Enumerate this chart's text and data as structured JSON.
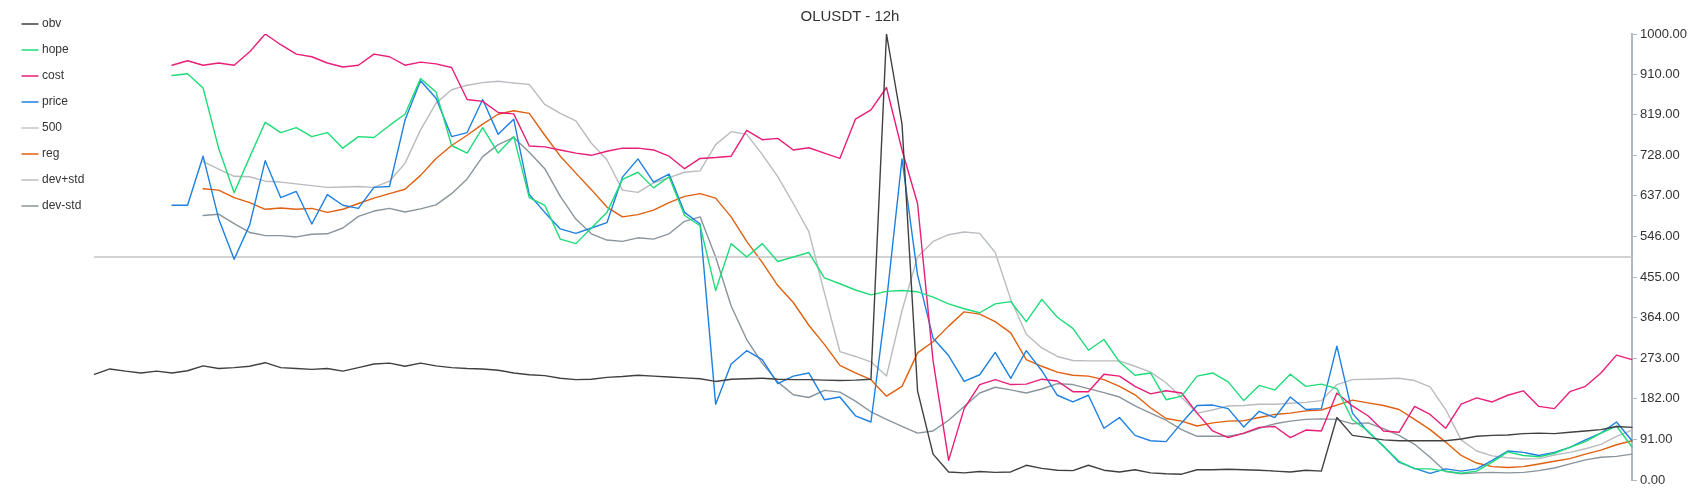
{
  "chart_data": {
    "type": "line",
    "title": "OLUSDT - 12h",
    "categories": [
      null,
      null,
      null,
      null,
      null,
      null,
      null,
      null,
      null,
      null,
      null,
      null,
      null,
      null,
      null,
      null,
      null,
      null,
      null,
      null,
      null,
      null,
      null,
      null,
      null,
      null,
      null,
      null,
      null,
      null,
      null,
      null,
      null,
      null,
      null,
      null,
      null,
      null,
      null,
      null,
      null,
      null,
      null,
      null,
      null,
      null,
      null,
      null,
      null,
      null,
      null,
      null,
      null,
      null,
      null,
      null,
      null,
      null,
      null,
      null,
      null,
      null,
      null,
      null,
      null,
      null,
      null,
      null,
      null,
      null,
      null,
      null,
      null,
      null,
      null,
      null,
      null,
      null,
      null,
      null,
      null,
      null,
      null,
      null,
      null,
      null,
      null,
      null,
      null,
      null,
      null,
      null,
      null,
      null,
      null,
      null,
      null,
      null,
      null,
      null
    ],
    "series": [
      {
        "name": "obv",
        "color": "#404040",
        "values": [
          237,
          249,
          244,
          240,
          244,
          240,
          245,
          256,
          250,
          252,
          255,
          263,
          252,
          250,
          248,
          250,
          244,
          252,
          260,
          262,
          255,
          262,
          256,
          252,
          250,
          249,
          246,
          240,
          236,
          234,
          228,
          225,
          226,
          230,
          232,
          235,
          233,
          231,
          229,
          227,
          221,
          226,
          227,
          228,
          226,
          225,
          225,
          224,
          223,
          224,
          226,
          1000,
          798,
          200,
          58,
          18,
          16,
          19,
          17,
          18,
          33,
          26,
          22,
          21,
          33,
          22,
          18,
          23,
          16,
          14,
          13,
          23,
          23,
          24,
          23,
          22,
          20,
          18,
          22,
          20,
          140,
          100,
          95,
          90,
          88,
          88,
          88,
          88,
          92,
          98,
          100,
          101,
          104,
          105,
          104,
          107,
          110,
          113,
          120,
          118
        ]
      },
      {
        "name": "hope",
        "color": "#1fdc78",
        "values": [
          null,
          null,
          null,
          null,
          null,
          907,
          911,
          879,
          744,
          644,
          724,
          802,
          779,
          790,
          770,
          779,
          744,
          770,
          768,
          795,
          820,
          900,
          870,
          750,
          733,
          790,
          733,
          770,
          633,
          616,
          540,
          530,
          565,
          600,
          674,
          690,
          655,
          680,
          593,
          570,
          425,
          530,
          500,
          530,
          490,
          500,
          510,
          453,
          440,
          426,
          415,
          423,
          425,
          422,
          410,
          395,
          384,
          375,
          395,
          400,
          355,
          405,
          365,
          340,
          291,
          315,
          265,
          235,
          240,
          180,
          188,
          233,
          240,
          220,
          178,
          212,
          202,
          237,
          210,
          215,
          205,
          135,
          110,
          75,
          42,
          25,
          25,
          20,
          15,
          20,
          40,
          63,
          55,
          52,
          60,
          73,
          86,
          105,
          121,
          74
        ]
      },
      {
        "name": "cost",
        "color": "#e91e78",
        "values": [
          null,
          null,
          null,
          null,
          null,
          930,
          940,
          930,
          935,
          930,
          960,
          1000,
          976,
          955,
          949,
          935,
          926,
          930,
          955,
          949,
          930,
          937,
          933,
          925,
          853,
          849,
          824,
          821,
          749,
          747,
          740,
          733,
          728,
          737,
          744,
          744,
          740,
          726,
          698,
          721,
          723,
          726,
          784,
          763,
          766,
          740,
          745,
          733,
          721,
          809,
          830,
          880,
          740,
          620,
          267,
          44,
          160,
          214,
          225,
          214,
          215,
          226,
          222,
          198,
          198,
          237,
          233,
          210,
          193,
          200,
          195,
          150,
          110,
          95,
          105,
          118,
          120,
          95,
          112,
          110,
          195,
          166,
          144,
          110,
          107,
          165,
          147,
          116,
          170,
          184,
          175,
          190,
          200,
          165,
          160,
          198,
          210,
          240,
          280,
          270
        ]
      },
      {
        "name": "price",
        "color": "#1e80e0",
        "values": [
          null,
          null,
          null,
          null,
          null,
          616,
          616,
          726,
          586,
          495,
          572,
          716,
          633,
          647,
          574,
          640,
          616,
          609,
          656,
          658,
          807,
          895,
          856,
          770,
          779,
          853,
          775,
          809,
          640,
          600,
          563,
          553,
          565,
          577,
          679,
          720,
          668,
          686,
          600,
          574,
          170,
          260,
          290,
          270,
          216,
          233,
          240,
          180,
          186,
          144,
          130,
          400,
          720,
          460,
          318,
          279,
          221,
          236,
          286,
          228,
          290,
          245,
          190,
          175,
          190,
          116,
          140,
          100,
          88,
          86,
          128,
          167,
          168,
          160,
          119,
          154,
          140,
          186,
          158,
          160,
          300,
          150,
          108,
          76,
          40,
          26,
          15,
          25,
          20,
          25,
          44,
          65,
          62,
          55,
          62,
          73,
          90,
          105,
          130,
          88
        ]
      },
      {
        "name": "500",
        "color": "#c4c4c4",
        "values": [
          500,
          500,
          500,
          500,
          500,
          500,
          500,
          500,
          500,
          500,
          500,
          500,
          500,
          500,
          500,
          500,
          500,
          500,
          500,
          500,
          500,
          500,
          500,
          500,
          500,
          500,
          500,
          500,
          500,
          500,
          500,
          500,
          500,
          500,
          500,
          500,
          500,
          500,
          500,
          500,
          500,
          500,
          500,
          500,
          500,
          500,
          500,
          500,
          500,
          500,
          500,
          500,
          500,
          500,
          500,
          500,
          500,
          500,
          500,
          500,
          500,
          500,
          500,
          500,
          500,
          500,
          500,
          500,
          500,
          500,
          500,
          500,
          500,
          500,
          500,
          500,
          500,
          500,
          500,
          500,
          500,
          500,
          500,
          500,
          500,
          500,
          500,
          500,
          500,
          500,
          500,
          500,
          500,
          500,
          500,
          500,
          500,
          500,
          500,
          500
        ]
      },
      {
        "name": "reg",
        "color": "#e06010",
        "values": [
          null,
          null,
          null,
          null,
          null,
          null,
          null,
          653,
          650,
          633,
          622,
          607,
          610,
          607,
          609,
          600,
          607,
          620,
          632,
          642,
          652,
          683,
          721,
          750,
          773,
          798,
          820,
          828,
          822,
          773,
          726,
          688,
          651,
          612,
          590,
          595,
          605,
          622,
          636,
          642,
          632,
          590,
          535,
          488,
          436,
          398,
          347,
          304,
          257,
          240,
          225,
          188,
          210,
          285,
          310,
          345,
          377,
          372,
          355,
          330,
          270,
          255,
          242,
          235,
          233,
          225,
          210,
          191,
          162,
          138,
          132,
          121,
          128,
          132,
          133,
          140,
          147,
          150,
          155,
          157,
          168,
          179,
          173,
          167,
          158,
          136,
          113,
          85,
          55,
          38,
          30,
          28,
          30,
          36,
          42,
          48,
          58,
          67,
          79,
          88
        ]
      },
      {
        "name": "dev+std",
        "color": "#b8bcc0",
        "values": [
          null,
          null,
          null,
          null,
          null,
          null,
          null,
          714,
          697,
          681,
          680,
          670,
          668,
          664,
          660,
          656,
          657,
          658,
          656,
          670,
          710,
          785,
          845,
          875,
          885,
          891,
          894,
          890,
          887,
          842,
          822,
          805,
          755,
          718,
          650,
          645,
          666,
          678,
          690,
          693,
          752,
          781,
          775,
          730,
          680,
          620,
          557,
          420,
          288,
          277,
          265,
          233,
          380,
          500,
          535,
          550,
          556,
          553,
          510,
          405,
          327,
          296,
          277,
          268,
          267,
          267,
          267,
          255,
          242,
          218,
          185,
          150,
          157,
          166,
          167,
          170,
          170,
          172,
          174,
          178,
          214,
          225,
          226,
          227,
          228,
          223,
          209,
          158,
          90,
          65,
          54,
          50,
          47,
          48,
          56,
          62,
          70,
          80,
          98,
          112
        ]
      },
      {
        "name": "dev-std",
        "color": "#8a949c",
        "values": [
          null,
          null,
          null,
          null,
          null,
          null,
          null,
          593,
          596,
          575,
          555,
          548,
          548,
          545,
          551,
          552,
          565,
          591,
          603,
          609,
          601,
          608,
          617,
          642,
          675,
          725,
          752,
          768,
          735,
          698,
          636,
          585,
          552,
          538,
          535,
          543,
          540,
          552,
          580,
          590,
          500,
          390,
          315,
          262,
          220,
          191,
          185,
          201,
          197,
          177,
          153,
          136,
          120,
          105,
          110,
          134,
          165,
          195,
          208,
          202,
          195,
          204,
          216,
          214,
          205,
          196,
          186,
          166,
          150,
          134,
          113,
          98,
          98,
          98,
          104,
          116,
          126,
          132,
          136,
          137,
          136,
          126,
          128,
          115,
          100,
          80,
          51,
          19,
          14,
          16,
          17,
          16,
          17,
          21,
          27,
          36,
          45,
          51,
          53,
          58
        ]
      }
    ],
    "ylim": [
      0,
      1000
    ],
    "yticks": [
      {
        "value": 0,
        "label": "0.00"
      },
      {
        "value": 91,
        "label": "91.00"
      },
      {
        "value": 182,
        "label": "182.00"
      },
      {
        "value": 273,
        "label": "273.00"
      },
      {
        "value": 364,
        "label": "364.00"
      },
      {
        "value": 455,
        "label": "455.00"
      },
      {
        "value": 546,
        "label": "546.00"
      },
      {
        "value": 637,
        "label": "637.00"
      },
      {
        "value": 728,
        "label": "728.00"
      },
      {
        "value": 819,
        "label": "819.00"
      },
      {
        "value": 910,
        "label": "910.00"
      },
      {
        "value": 1000,
        "label": "1000.00"
      }
    ],
    "tick_labels": "y",
    "grid": false,
    "legend": "top left",
    "marker": "none",
    "line_style": "solid"
  }
}
